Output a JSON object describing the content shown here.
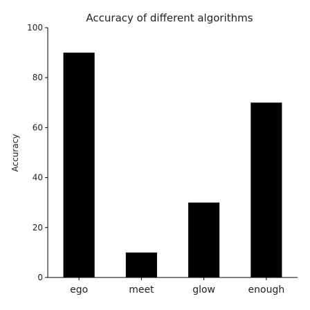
{
  "chart_data": {
    "type": "bar",
    "title": "Accuracy of different algorithms",
    "xlabel": "",
    "ylabel": "Accuracy",
    "categories": [
      "ego",
      "meet",
      "glow",
      "enough"
    ],
    "values": [
      90,
      10,
      30,
      70
    ],
    "ylim": [
      0,
      100
    ],
    "yticks": [
      0,
      20,
      40,
      60,
      80,
      100
    ],
    "grid": false,
    "bar_color": "#000000"
  }
}
